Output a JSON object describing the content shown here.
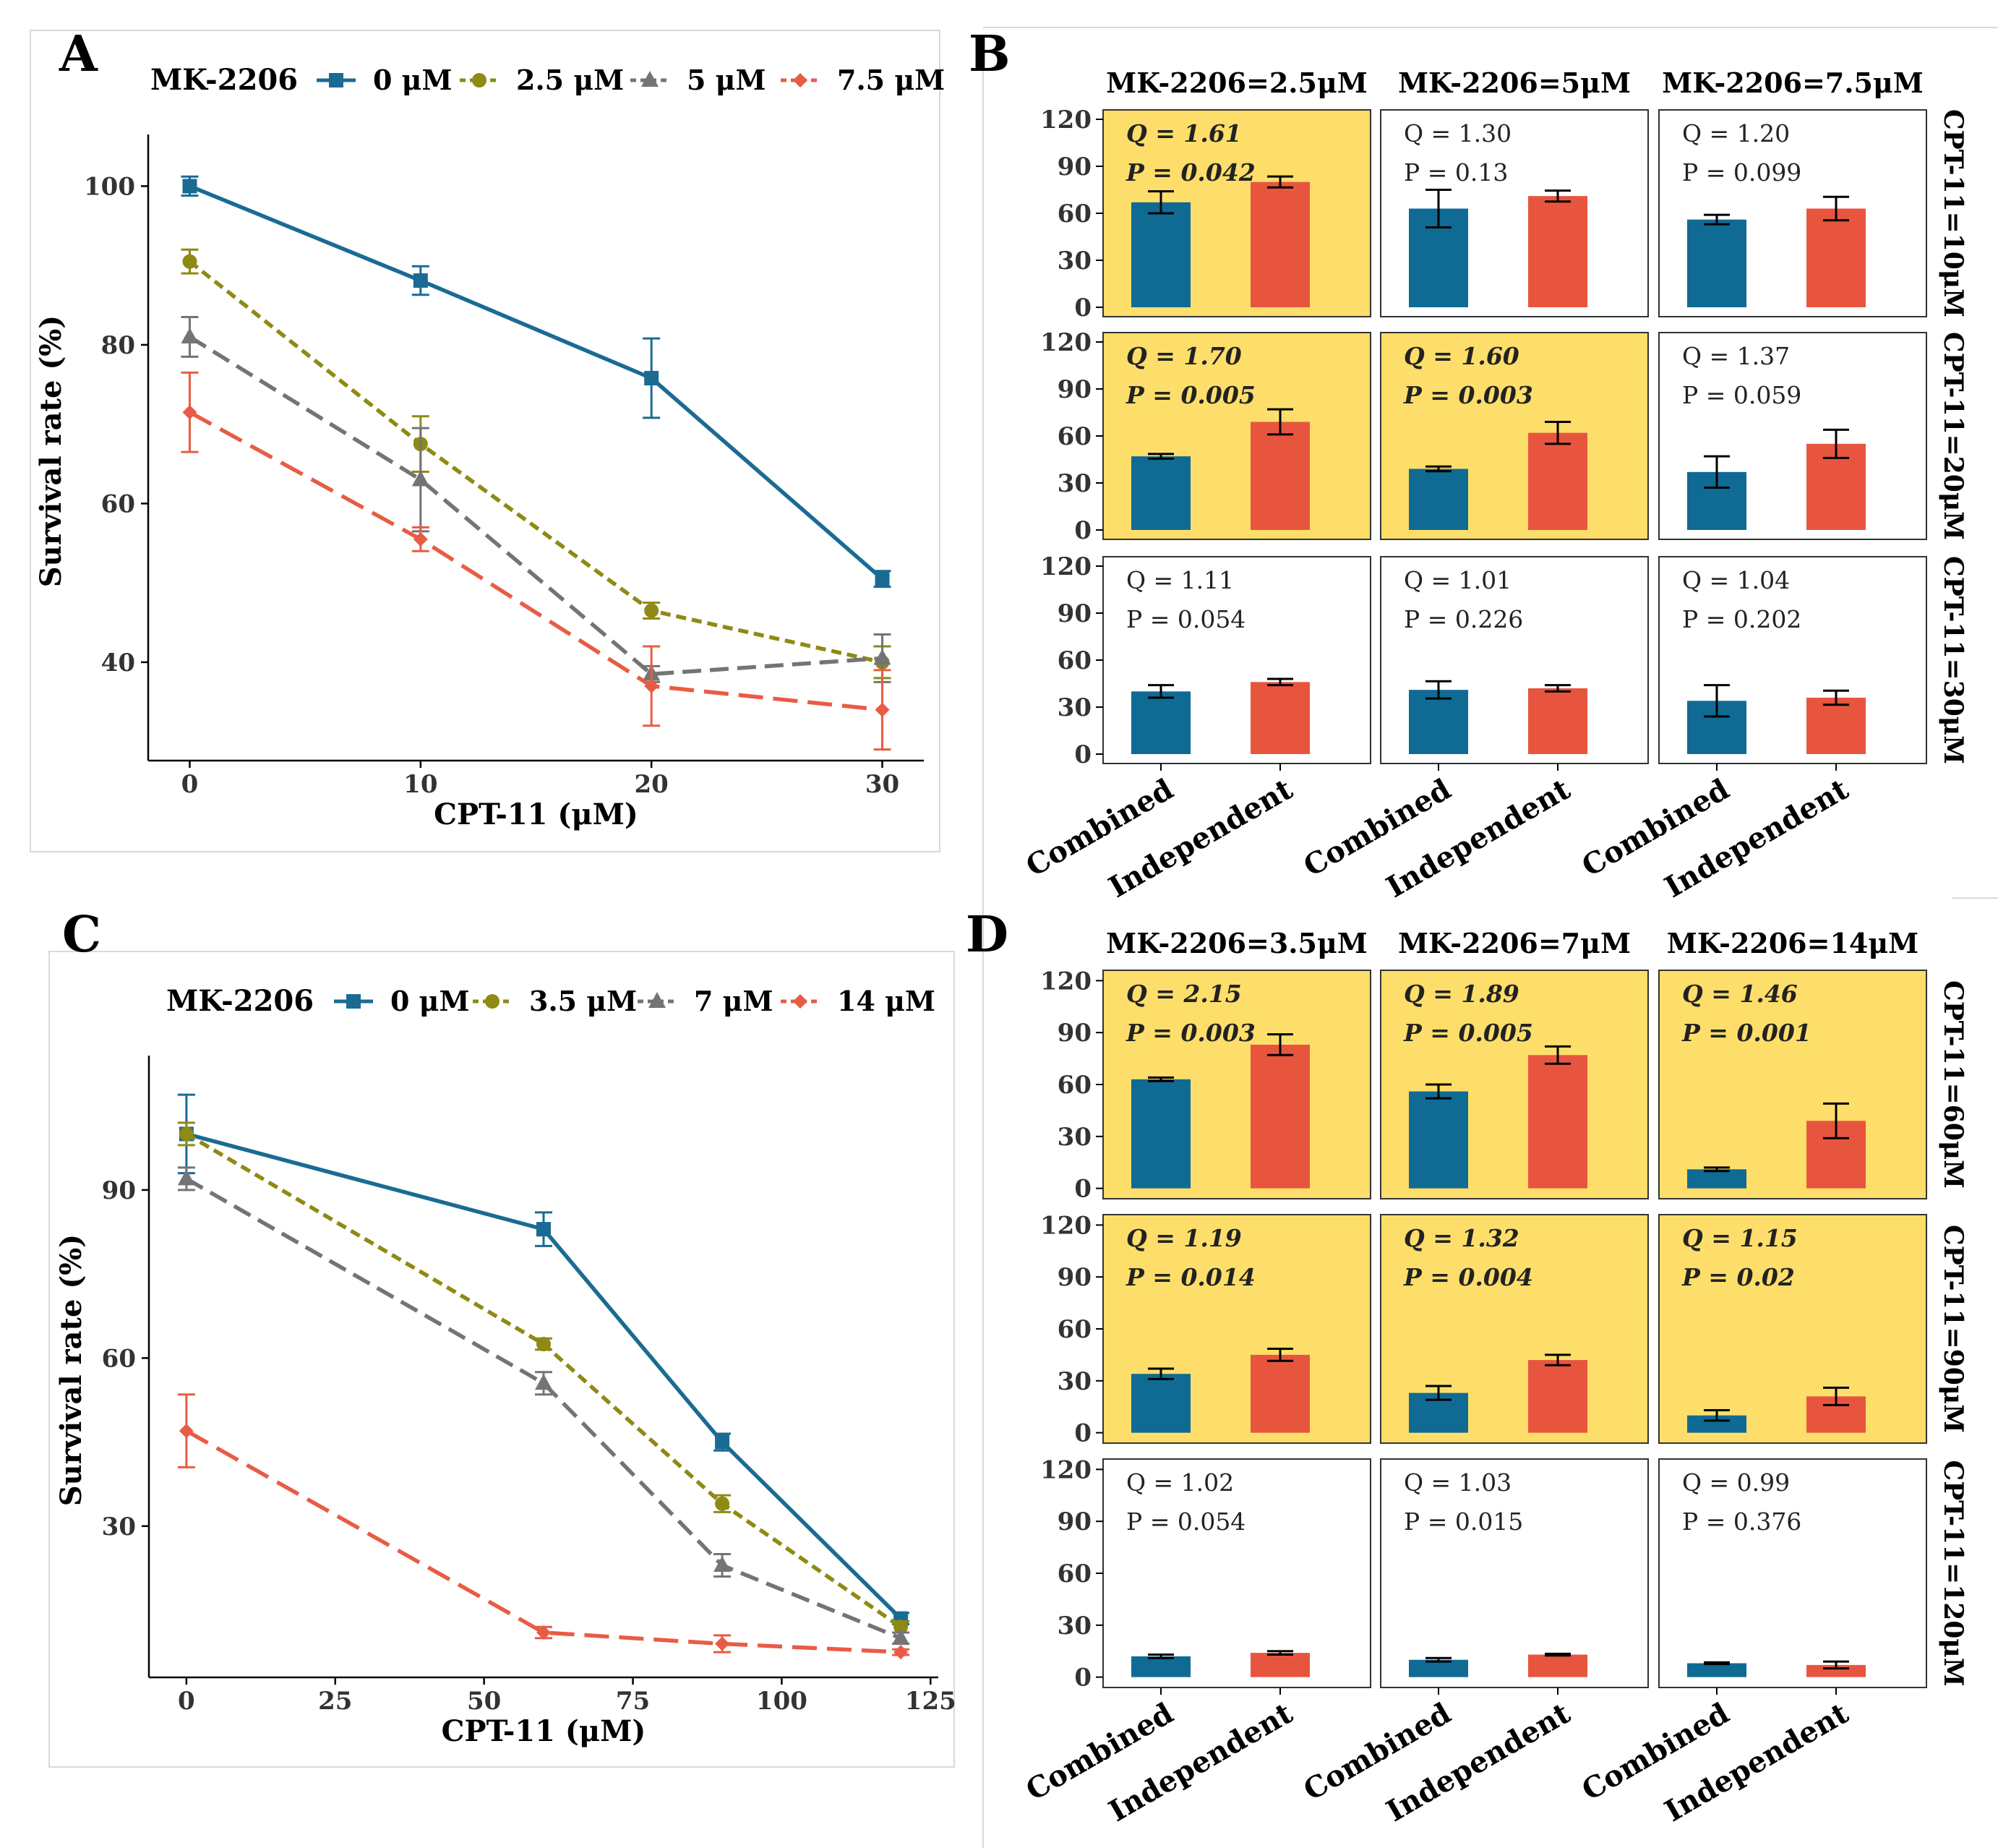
{
  "colors": {
    "c0": "#1a6b94",
    "c1": "#8e8a14",
    "c2": "#747474",
    "c3": "#e85c45",
    "combined": "#0f6b94",
    "independent": "#e8553f",
    "highlight": "#fede6a"
  },
  "chart_data": [
    {
      "panel": "A",
      "type": "line",
      "legend_title": "MK-2206",
      "legend_position": "top",
      "xlabel": "CPT-11 (μM)",
      "ylabel": "Survival rate (%)",
      "x": [
        0,
        10,
        20,
        30
      ],
      "xticks": [
        0,
        10,
        20,
        30
      ],
      "yticks": [
        40,
        60,
        80,
        100
      ],
      "xlim": [
        -1.8,
        31.8
      ],
      "ylim": [
        27.6,
        105.6
      ],
      "series": [
        {
          "name": "0 μM",
          "values": [
            100,
            88.1,
            75.8,
            50.5
          ],
          "errors": [
            1.2,
            1.8,
            5.0,
            1.0
          ],
          "marker": "square",
          "dash": "solid"
        },
        {
          "name": "2.5 μM",
          "values": [
            90.5,
            67.5,
            46.5,
            40.0
          ],
          "errors": [
            1.5,
            3.5,
            1.0,
            2.0
          ],
          "marker": "circle",
          "dash": "dotted"
        },
        {
          "name": "5 μM",
          "values": [
            81.0,
            63.0,
            38.5,
            40.5
          ],
          "errors": [
            2.5,
            6.5,
            1.0,
            3.0
          ],
          "marker": "triangle",
          "dash": "dashed"
        },
        {
          "name": "7.5 μM",
          "values": [
            71.5,
            55.5,
            37.0,
            34.0
          ],
          "errors": [
            5.0,
            1.5,
            5.0,
            5.0
          ],
          "marker": "diamond",
          "dash": "longdash"
        }
      ]
    },
    {
      "panel": "C",
      "type": "line",
      "legend_title": "MK-2206",
      "legend_position": "top",
      "xlabel": "CPT-11 (μM)",
      "ylabel": "Survival rate (%)",
      "x": [
        0,
        60,
        90,
        120
      ],
      "xticks": [
        0,
        25,
        50,
        75,
        100,
        125
      ],
      "yticks": [
        30,
        60,
        90
      ],
      "xlim": [
        -6.3,
        126.3
      ],
      "ylim": [
        3.0,
        112.7
      ],
      "series": [
        {
          "name": "0 μM",
          "values": [
            100,
            83,
            45,
            13.5
          ],
          "errors": [
            7.0,
            3.0,
            1.5,
            1.0
          ],
          "marker": "square",
          "dash": "solid"
        },
        {
          "name": "3.5 μM",
          "values": [
            100,
            62.5,
            34,
            12
          ],
          "errors": [
            2.0,
            1.0,
            1.5,
            1.0
          ],
          "marker": "circle",
          "dash": "dotted"
        },
        {
          "name": "7 μM",
          "values": [
            92,
            55.5,
            23,
            10
          ],
          "errors": [
            2.0,
            2.0,
            2.0,
            1.0
          ],
          "marker": "triangle",
          "dash": "dashed"
        },
        {
          "name": "14 μM",
          "values": [
            47,
            11,
            9,
            7.5
          ],
          "errors": [
            6.5,
            1.0,
            1.5,
            0.5
          ],
          "marker": "diamond",
          "dash": "longdash"
        }
      ]
    },
    {
      "panel": "B",
      "type": "bar",
      "categories": [
        "Combined",
        "Independent"
      ],
      "col_labels": [
        "MK-2206=2.5μM",
        "MK-2206=5μM",
        "MK-2206=7.5μM"
      ],
      "row_labels": [
        "CPT-11=10μM",
        "CPT-11=20μM",
        "CPT-11=30μM"
      ],
      "yticks": [
        0,
        30,
        60,
        90,
        120
      ],
      "ylim": [
        -6,
        126
      ],
      "cells": [
        [
          {
            "q": "Q = 1.61",
            "p": "P = 0.042",
            "hl": true,
            "values": [
              67,
              80
            ],
            "errors": [
              7,
              3.5
            ]
          },
          {
            "q": "Q = 1.30",
            "p": "P = 0.13",
            "hl": false,
            "values": [
              63,
              71
            ],
            "errors": [
              12,
              3.5
            ]
          },
          {
            "q": "Q = 1.20",
            "p": "P = 0.099",
            "hl": false,
            "values": [
              56,
              63
            ],
            "errors": [
              3,
              7.5
            ]
          }
        ],
        [
          {
            "q": "Q = 1.70",
            "p": "P = 0.005",
            "hl": true,
            "values": [
              47,
              69
            ],
            "errors": [
              1.5,
              8
            ]
          },
          {
            "q": "Q = 1.60",
            "p": "P = 0.003",
            "hl": true,
            "values": [
              39,
              62
            ],
            "errors": [
              1.5,
              7
            ]
          },
          {
            "q": "Q = 1.37",
            "p": "P = 0.059",
            "hl": false,
            "values": [
              37,
              55
            ],
            "errors": [
              10,
              9
            ]
          }
        ],
        [
          {
            "q": "Q = 1.11",
            "p": "P = 0.054",
            "hl": false,
            "values": [
              40,
              46
            ],
            "errors": [
              4,
              2
            ]
          },
          {
            "q": "Q = 1.01",
            "p": "P = 0.226",
            "hl": false,
            "values": [
              41,
              42
            ],
            "errors": [
              5.5,
              2
            ]
          },
          {
            "q": "Q = 1.04",
            "p": "P = 0.202",
            "hl": false,
            "values": [
              34,
              36
            ],
            "errors": [
              10,
              4.5
            ]
          }
        ]
      ]
    },
    {
      "panel": "D",
      "type": "bar",
      "categories": [
        "Combined",
        "Independent"
      ],
      "col_labels": [
        "MK-2206=3.5μM",
        "MK-2206=7μM",
        "MK-2206=14μM"
      ],
      "row_labels": [
        "CPT-11=60μM",
        "CPT-11=90μM",
        "CPT-11=120μM"
      ],
      "yticks": [
        0,
        30,
        60,
        90,
        120
      ],
      "ylim": [
        -6,
        126
      ],
      "cells": [
        [
          {
            "q": "Q = 2.15",
            "p": "P = 0.003",
            "hl": true,
            "values": [
              63,
              83
            ],
            "errors": [
              1,
              6
            ]
          },
          {
            "q": "Q = 1.89",
            "p": "P = 0.005",
            "hl": true,
            "values": [
              56,
              77
            ],
            "errors": [
              4,
              5
            ]
          },
          {
            "q": "Q = 1.46",
            "p": "P = 0.001",
            "hl": true,
            "values": [
              11,
              39
            ],
            "errors": [
              1,
              10
            ]
          }
        ],
        [
          {
            "q": "Q = 1.19",
            "p": "P = 0.014",
            "hl": true,
            "values": [
              34,
              45
            ],
            "errors": [
              3,
              3.5
            ]
          },
          {
            "q": "Q = 1.32",
            "p": "P = 0.004",
            "hl": true,
            "values": [
              23,
              42
            ],
            "errors": [
              4,
              3
            ]
          },
          {
            "q": "Q = 1.15",
            "p": "P = 0.02",
            "hl": true,
            "values": [
              10,
              21
            ],
            "errors": [
              3,
              5
            ]
          }
        ],
        [
          {
            "q": "Q = 1.02",
            "p": "P = 0.054",
            "hl": false,
            "values": [
              12,
              14
            ],
            "errors": [
              1,
              1
            ]
          },
          {
            "q": "Q = 1.03",
            "p": "P = 0.015",
            "hl": false,
            "values": [
              10,
              13
            ],
            "errors": [
              1,
              0.5
            ]
          },
          {
            "q": "Q = 0.99",
            "p": "P = 0.376",
            "hl": false,
            "values": [
              8,
              7
            ],
            "errors": [
              0.5,
              2
            ]
          }
        ]
      ]
    }
  ],
  "panel_letters": {
    "A": "A",
    "B": "B",
    "C": "C",
    "D": "D"
  }
}
